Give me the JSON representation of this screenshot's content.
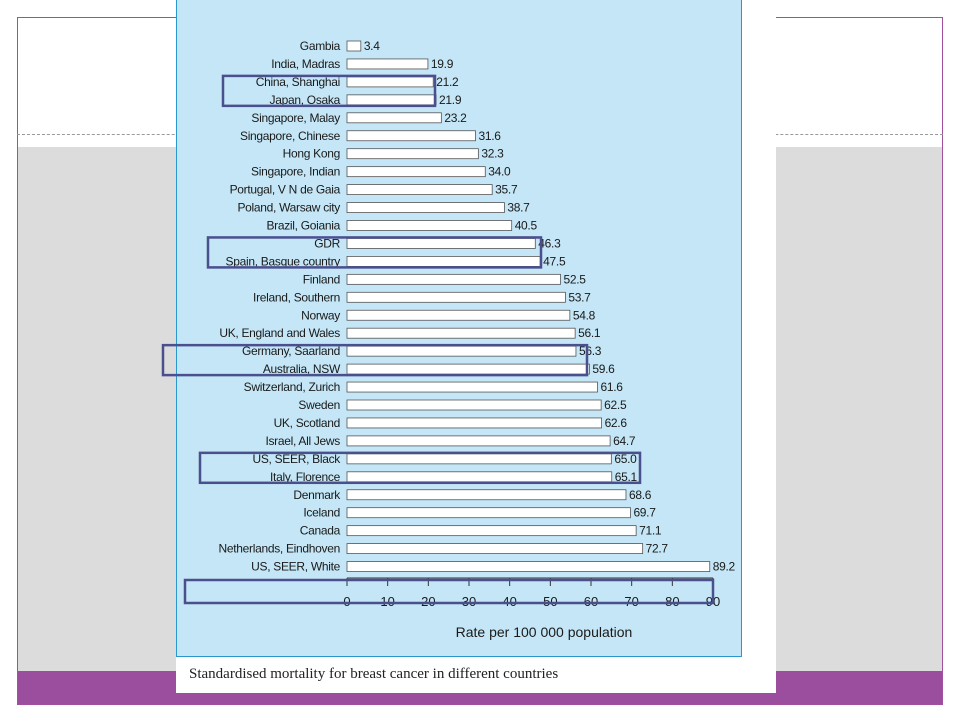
{
  "caption": "Standardised mortality for breast cancer in different countries",
  "colors": {
    "frame": "#a24fa0",
    "footer_bar": "#9b4d9e",
    "band": "#dcdcdc",
    "panel": "#c4e6f6",
    "panel_border": "#2a97cf",
    "bar_fill": "#ffffff",
    "bar_stroke": "#555555",
    "highlight_box": "#4a4f8e"
  },
  "chart_data": {
    "type": "bar",
    "orientation": "horizontal",
    "xlabel": "Rate per 100 000 population",
    "xlim": [
      0,
      90
    ],
    "xticks": [
      0,
      10,
      20,
      30,
      40,
      50,
      60,
      70,
      80,
      90
    ],
    "grid": false,
    "categories": [
      "Gambia",
      "India, Madras",
      "China, Shanghai",
      "Japan, Osaka",
      "Singapore, Malay",
      "Singapore, Chinese",
      "Hong Kong",
      "Singapore, Indian",
      "Portugal, V N de Gaia",
      "Poland, Warsaw city",
      "Brazil, Goiania",
      "GDR",
      "Spain, Basque country",
      "Finland",
      "Ireland, Southern",
      "Norway",
      "UK, England and Wales",
      "Germany, Saarland",
      "Australia, NSW",
      "Switzerland, Zurich",
      "Sweden",
      "UK, Scotland",
      "Israel, All Jews",
      "US, SEER, Black",
      "Italy, Florence",
      "Denmark",
      "Iceland",
      "Canada",
      "Netherlands, Eindhoven",
      "US, SEER, White"
    ],
    "values": [
      3.4,
      19.9,
      21.2,
      21.9,
      23.2,
      31.6,
      32.3,
      34.0,
      35.7,
      38.7,
      40.5,
      46.3,
      47.5,
      52.5,
      53.7,
      54.8,
      56.1,
      56.3,
      59.6,
      61.6,
      62.5,
      62.6,
      64.7,
      65.0,
      65.1,
      68.6,
      69.7,
      71.1,
      72.7,
      89.2
    ],
    "value_labels": [
      "3.4",
      "19.9",
      "21.2",
      "21.9",
      "23.2",
      "31.6",
      "32.3",
      "34.0",
      "35.7",
      "38.7",
      "40.5",
      "46.3",
      "47.5",
      "52.5",
      "53.7",
      "54.8",
      "56.1",
      "56.3",
      "59.6",
      "61.6",
      "62.5",
      "62.6",
      "64.7",
      "65.0",
      "65.1",
      "68.6",
      "69.7",
      "71.1",
      "72.7",
      "89.2"
    ],
    "highlighted_pairs": [
      [
        "China, Shanghai",
        "Japan, Osaka"
      ],
      [
        "GDR",
        "Spain, Basque country"
      ],
      [
        "Germany, Saarland",
        "Australia, NSW"
      ],
      [
        "US, SEER, Black",
        "Italy, Florence"
      ]
    ],
    "highlighted_axis": true
  }
}
